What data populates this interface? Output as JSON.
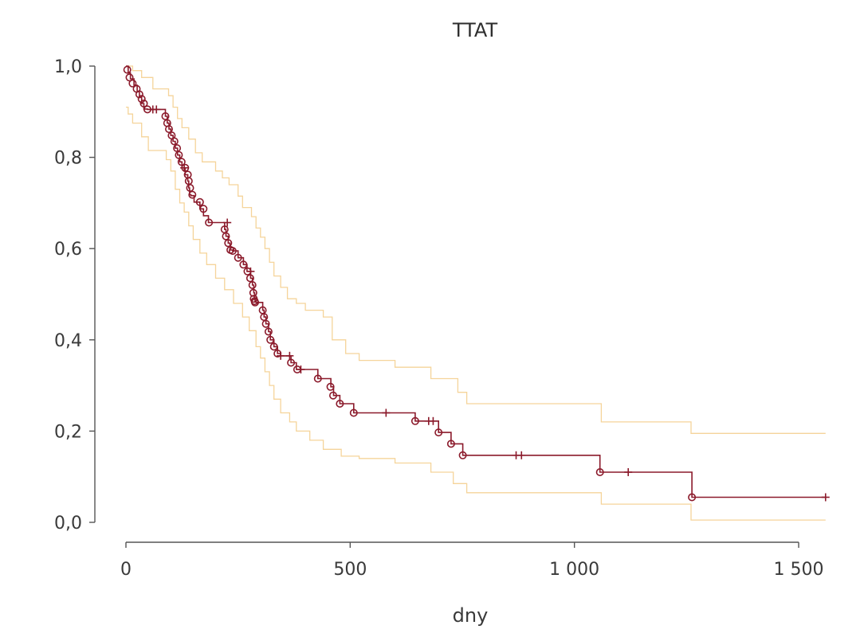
{
  "chart_data": {
    "type": "line",
    "title": "TTAT",
    "xlabel": "dny",
    "ylabel": "",
    "xlim": [
      0,
      1560
    ],
    "ylim": [
      0,
      1.0
    ],
    "x_ticks": [
      {
        "value": 0,
        "label": "0"
      },
      {
        "value": 500,
        "label": "500"
      },
      {
        "value": 1000,
        "label": "1 000"
      },
      {
        "value": 1500,
        "label": "1 500"
      }
    ],
    "y_ticks": [
      {
        "value": 0.0,
        "label": "0,0"
      },
      {
        "value": 0.2,
        "label": "0,2"
      },
      {
        "value": 0.4,
        "label": "0,4"
      },
      {
        "value": 0.6,
        "label": "0,6"
      },
      {
        "value": 0.8,
        "label": "0,8"
      },
      {
        "value": 1.0,
        "label": "1,0"
      }
    ],
    "grid": false,
    "legend": "none",
    "colors": {
      "survival": "#8b1a2b",
      "ci": "#f5d49a",
      "axis": "#555555"
    },
    "survival": {
      "step_x": [
        0,
        5,
        10,
        18,
        25,
        30,
        35,
        40,
        48,
        88,
        92,
        96,
        100,
        105,
        110,
        115,
        120,
        125,
        132,
        138,
        140,
        142,
        145,
        152,
        165,
        173,
        184,
        220,
        223,
        228,
        232,
        238,
        250,
        262,
        270,
        278,
        282,
        285,
        287,
        288,
        290,
        305,
        308,
        312,
        318,
        322,
        330,
        338,
        345,
        368,
        380,
        428,
        457,
        463,
        477,
        508,
        645,
        697,
        725,
        751,
        1057,
        1262,
        1560
      ],
      "step_y": [
        1.0,
        0.985,
        0.972,
        0.958,
        0.945,
        0.932,
        0.918,
        0.906,
        0.905,
        0.89,
        0.875,
        0.862,
        0.848,
        0.835,
        0.82,
        0.805,
        0.79,
        0.777,
        0.762,
        0.748,
        0.733,
        0.718,
        0.716,
        0.702,
        0.687,
        0.672,
        0.657,
        0.642,
        0.627,
        0.612,
        0.597,
        0.595,
        0.58,
        0.565,
        0.55,
        0.535,
        0.52,
        0.503,
        0.49,
        0.485,
        0.482,
        0.465,
        0.45,
        0.435,
        0.418,
        0.4,
        0.385,
        0.37,
        0.365,
        0.35,
        0.335,
        0.315,
        0.297,
        0.278,
        0.26,
        0.24,
        0.222,
        0.197,
        0.172,
        0.147,
        0.11,
        0.055,
        0.055
      ],
      "events_x": [
        3,
        8,
        15,
        24,
        30,
        35,
        40,
        48,
        88,
        92,
        96,
        102,
        108,
        114,
        118,
        124,
        132,
        138,
        140,
        143,
        148,
        165,
        173,
        185,
        220,
        223,
        228,
        233,
        238,
        250,
        262,
        271,
        277,
        282,
        284,
        285,
        287,
        288,
        305,
        308,
        312,
        318,
        322,
        330,
        338,
        368,
        382,
        428,
        456,
        462,
        477,
        508,
        645,
        697,
        725,
        751,
        1057,
        1262
      ],
      "events_y": [
        0.992,
        0.975,
        0.962,
        0.95,
        0.938,
        0.928,
        0.918,
        0.905,
        0.89,
        0.875,
        0.862,
        0.848,
        0.835,
        0.82,
        0.805,
        0.79,
        0.777,
        0.762,
        0.748,
        0.733,
        0.718,
        0.702,
        0.687,
        0.657,
        0.642,
        0.627,
        0.612,
        0.597,
        0.595,
        0.58,
        0.565,
        0.55,
        0.535,
        0.52,
        0.503,
        0.49,
        0.485,
        0.482,
        0.465,
        0.45,
        0.435,
        0.418,
        0.4,
        0.385,
        0.37,
        0.35,
        0.335,
        0.315,
        0.297,
        0.278,
        0.26,
        0.24,
        0.222,
        0.197,
        0.172,
        0.147,
        0.11,
        0.055
      ],
      "censored_x": [
        60,
        68,
        130,
        226,
        278,
        345,
        365,
        390,
        580,
        675,
        685,
        870,
        882,
        1120,
        1560
      ],
      "censored_y": [
        0.905,
        0.905,
        0.777,
        0.657,
        0.55,
        0.365,
        0.365,
        0.335,
        0.24,
        0.222,
        0.222,
        0.147,
        0.147,
        0.11,
        0.055
      ]
    },
    "ci_upper": {
      "step_x": [
        0,
        15,
        35,
        60,
        95,
        105,
        115,
        125,
        140,
        155,
        170,
        200,
        215,
        230,
        250,
        260,
        280,
        290,
        300,
        310,
        320,
        330,
        345,
        360,
        380,
        400,
        440,
        460,
        490,
        520,
        600,
        680,
        740,
        760,
        1060,
        1260,
        1560
      ],
      "step_y": [
        1.0,
        0.99,
        0.975,
        0.95,
        0.935,
        0.91,
        0.885,
        0.865,
        0.84,
        0.81,
        0.79,
        0.77,
        0.755,
        0.74,
        0.715,
        0.69,
        0.67,
        0.645,
        0.625,
        0.6,
        0.57,
        0.54,
        0.515,
        0.49,
        0.48,
        0.465,
        0.45,
        0.4,
        0.37,
        0.355,
        0.34,
        0.315,
        0.285,
        0.26,
        0.22,
        0.195,
        0.195
      ]
    },
    "ci_lower": {
      "step_x": [
        0,
        5,
        15,
        35,
        50,
        90,
        100,
        110,
        120,
        130,
        140,
        150,
        165,
        180,
        200,
        220,
        240,
        260,
        275,
        290,
        300,
        310,
        320,
        330,
        345,
        365,
        380,
        410,
        440,
        480,
        520,
        600,
        680,
        730,
        760,
        1060,
        1260,
        1560
      ],
      "step_y": [
        0.91,
        0.895,
        0.875,
        0.845,
        0.815,
        0.795,
        0.77,
        0.73,
        0.7,
        0.68,
        0.65,
        0.62,
        0.59,
        0.565,
        0.535,
        0.51,
        0.48,
        0.45,
        0.42,
        0.385,
        0.36,
        0.33,
        0.3,
        0.27,
        0.24,
        0.22,
        0.2,
        0.18,
        0.16,
        0.145,
        0.14,
        0.13,
        0.11,
        0.085,
        0.065,
        0.04,
        0.005,
        0.005
      ]
    }
  }
}
